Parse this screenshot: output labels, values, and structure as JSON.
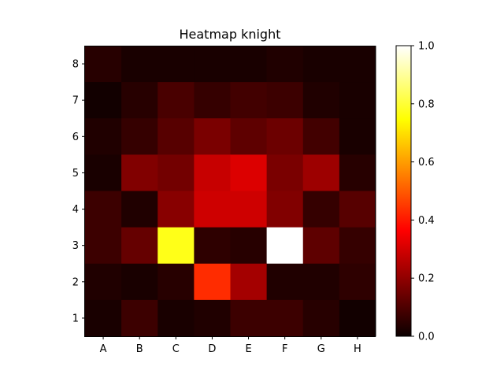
{
  "chart_data": {
    "type": "heatmap",
    "title": "Heatmap knight",
    "xlabel": "",
    "ylabel": "",
    "x_categories": [
      "A",
      "B",
      "C",
      "D",
      "E",
      "F",
      "G",
      "H"
    ],
    "y_categories": [
      "8",
      "7",
      "6",
      "5",
      "4",
      "3",
      "2",
      "1"
    ],
    "values": [
      [
        0.04,
        0.02,
        0.02,
        0.02,
        0.02,
        0.03,
        0.02,
        0.02
      ],
      [
        0.01,
        0.04,
        0.09,
        0.06,
        0.08,
        0.07,
        0.03,
        0.02
      ],
      [
        0.03,
        0.06,
        0.11,
        0.16,
        0.12,
        0.14,
        0.08,
        0.02
      ],
      [
        0.02,
        0.17,
        0.15,
        0.27,
        0.3,
        0.16,
        0.21,
        0.04
      ],
      [
        0.07,
        0.03,
        0.18,
        0.28,
        0.28,
        0.17,
        0.06,
        0.11
      ],
      [
        0.07,
        0.13,
        0.77,
        0.05,
        0.04,
        1.0,
        0.12,
        0.06
      ],
      [
        0.03,
        0.02,
        0.04,
        0.43,
        0.22,
        0.03,
        0.03,
        0.05
      ],
      [
        0.02,
        0.07,
        0.02,
        0.03,
        0.07,
        0.07,
        0.04,
        0.01
      ]
    ],
    "colormap": "hot",
    "vmin": 0.0,
    "vmax": 1.0,
    "colorbar_ticks": [
      "0.0",
      "0.2",
      "0.4",
      "0.6",
      "0.8",
      "1.0"
    ],
    "grid": false
  }
}
